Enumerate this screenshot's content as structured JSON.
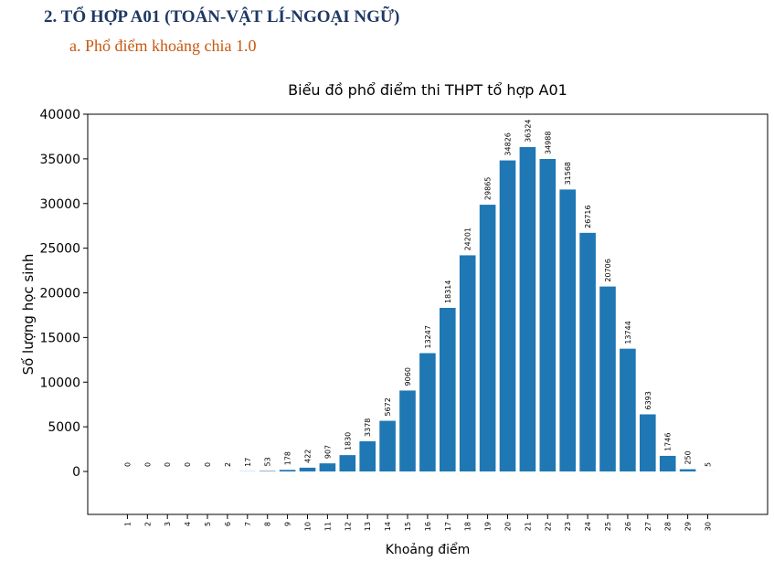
{
  "doc": {
    "heading": "2.  TỔ HỢP A01 (TOÁN-VẬT LÍ-NGOẠI NGỮ)",
    "subheading": "a.   Phổ điểm khoảng chia 1.0"
  },
  "colors": {
    "bar": "#1f77b4",
    "heading": "#1f3864",
    "subheading": "#c55a11"
  },
  "chart_data": {
    "type": "bar",
    "title": "Biểu đồ phổ điểm thi THPT tổ hợp A01",
    "xlabel": "Khoảng điểm",
    "ylabel": "Số lượng học sinh",
    "ylim": [
      0,
      40000
    ],
    "yticks": [
      0,
      5000,
      10000,
      15000,
      20000,
      25000,
      30000,
      35000,
      40000
    ],
    "categories": [
      "1",
      "2",
      "3",
      "4",
      "5",
      "6",
      "7",
      "8",
      "9",
      "10",
      "11",
      "12",
      "13",
      "14",
      "15",
      "16",
      "17",
      "18",
      "19",
      "20",
      "21",
      "22",
      "23",
      "24",
      "25",
      "26",
      "27",
      "28",
      "29",
      "30"
    ],
    "values": [
      0,
      0,
      0,
      0,
      0,
      2,
      17,
      53,
      178,
      422,
      907,
      1830,
      3378,
      5672,
      9060,
      13247,
      18314,
      24201,
      29865,
      34826,
      36324,
      34988,
      31568,
      26716,
      20706,
      13744,
      6393,
      1746,
      250,
      5
    ],
    "grid": false,
    "legend": "none"
  }
}
